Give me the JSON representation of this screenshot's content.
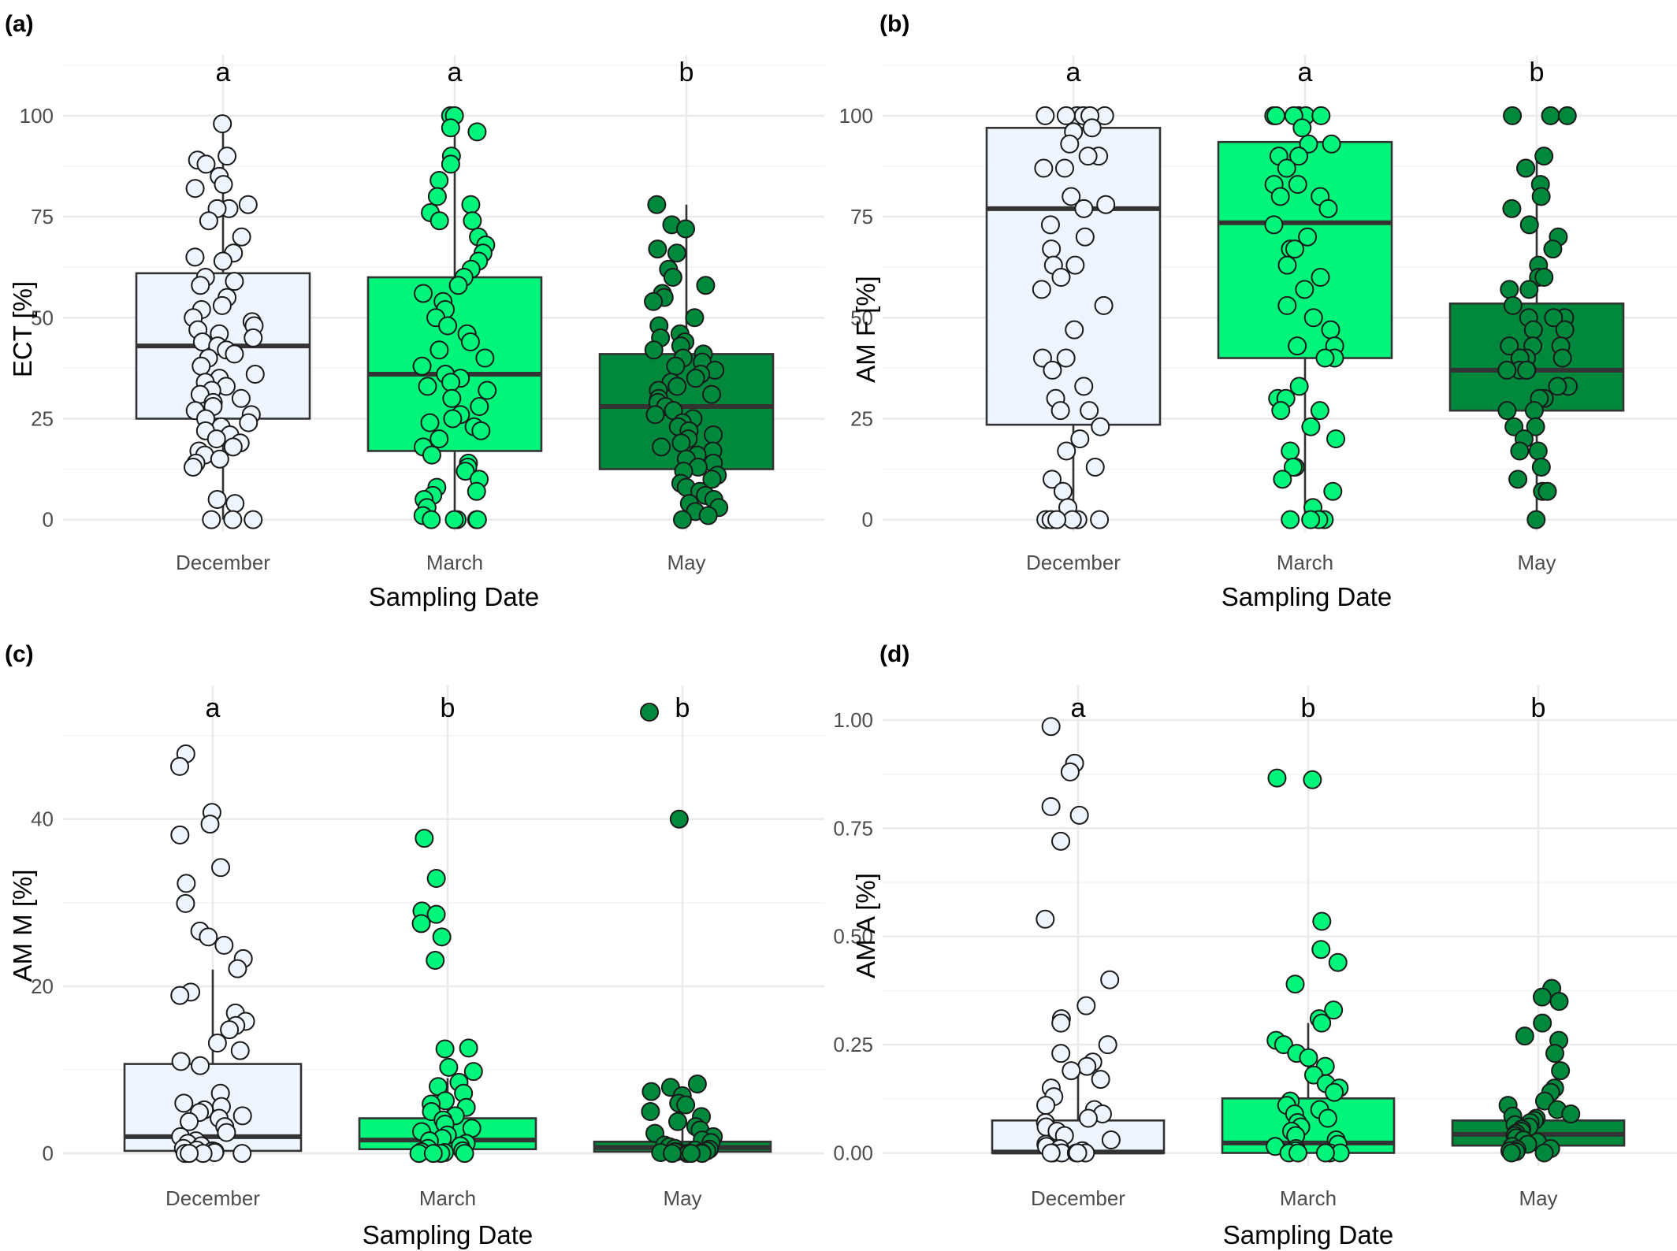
{
  "chart_data": [
    {
      "type": "box",
      "panel": "(a)",
      "ylabel": "ECT [%]",
      "xlabel": "Sampling Date",
      "categories": [
        "December",
        "March",
        "May"
      ],
      "letters": [
        "a",
        "a",
        "b"
      ],
      "ylim": [
        -3,
        115
      ],
      "yticks": [
        0,
        25,
        50,
        75,
        100
      ],
      "box_colors": [
        "#eef5fe",
        "#00f67a",
        "#00883d"
      ],
      "boxes": [
        {
          "q1": 25,
          "median": 43,
          "q3": 61,
          "whisker_low": 0,
          "whisker_high": 98
        },
        {
          "q1": 17,
          "median": 36,
          "q3": 60,
          "whisker_low": 0,
          "whisker_high": 100
        },
        {
          "q1": 12.5,
          "median": 28,
          "q3": 41,
          "whisker_low": 0,
          "whisker_high": 78
        }
      ],
      "points": [
        [
          98,
          90,
          89,
          88,
          85,
          83,
          82,
          78,
          77,
          77,
          74,
          70,
          66,
          65,
          64,
          60,
          59,
          58,
          55,
          53,
          52,
          50,
          49,
          48,
          47,
          46,
          45,
          44,
          43,
          42,
          41,
          40,
          38,
          36,
          35,
          34,
          33,
          32,
          31,
          30,
          29,
          28,
          27,
          26,
          25,
          24,
          23,
          22,
          21,
          20,
          19,
          18,
          17,
          16,
          15,
          14,
          13,
          5,
          4,
          0,
          0,
          0
        ],
        [
          100,
          100,
          97,
          96,
          90,
          88,
          84,
          80,
          78,
          76,
          74,
          74,
          70,
          68,
          66,
          64,
          62,
          60,
          58,
          56,
          54,
          52,
          50,
          48,
          46,
          44,
          42,
          40,
          38,
          36,
          35,
          34,
          33,
          32,
          30,
          28,
          26,
          25,
          24,
          23,
          22,
          20,
          18,
          16,
          14,
          13,
          12,
          10,
          8,
          7,
          6,
          5,
          3,
          1,
          0,
          0,
          0,
          0,
          0
        ],
        [
          78,
          73,
          72,
          67,
          66,
          62,
          60,
          58,
          56,
          55,
          54,
          50,
          48,
          46,
          45,
          44,
          43,
          42,
          41,
          40,
          39,
          38,
          37,
          36,
          35,
          34,
          33,
          32,
          31,
          30,
          29,
          28,
          27,
          26,
          25,
          24,
          23,
          22,
          21,
          20,
          19,
          18,
          17,
          16,
          15,
          14,
          13,
          12,
          11,
          10,
          9,
          8,
          7,
          6,
          5,
          4,
          3,
          2,
          1,
          0
        ]
      ]
    },
    {
      "type": "box",
      "panel": "(b)",
      "ylabel": "AM F [%]",
      "xlabel": "Sampling Date",
      "categories": [
        "December",
        "March",
        "May"
      ],
      "letters": [
        "a",
        "a",
        "b"
      ],
      "ylim": [
        -3,
        115
      ],
      "yticks": [
        0,
        25,
        50,
        75,
        100
      ],
      "box_colors": [
        "#eef5fe",
        "#00f67a",
        "#00883d"
      ],
      "boxes": [
        {
          "q1": 23.5,
          "median": 77,
          "q3": 97,
          "whisker_low": 0,
          "whisker_high": 100
        },
        {
          "q1": 40,
          "median": 73.5,
          "q3": 93.5,
          "whisker_low": 0,
          "whisker_high": 100
        },
        {
          "q1": 27,
          "median": 37,
          "q3": 53.5,
          "whisker_low": 0,
          "whisker_high": 90
        }
      ],
      "points": [
        [
          100,
          100,
          100,
          100,
          100,
          100,
          97,
          96,
          93,
          90,
          90,
          87,
          87,
          80,
          78,
          77,
          73,
          70,
          67,
          63,
          63,
          60,
          57,
          53,
          47,
          40,
          40,
          37,
          33,
          30,
          27,
          27,
          23,
          20,
          17,
          13,
          10,
          7,
          3,
          0,
          0,
          0,
          0,
          0,
          0
        ],
        [
          100,
          100,
          100,
          100,
          100,
          100,
          97,
          93,
          93,
          90,
          90,
          87,
          83,
          83,
          80,
          80,
          77,
          73,
          70,
          67,
          67,
          63,
          60,
          57,
          53,
          50,
          47,
          43,
          43,
          40,
          40,
          33,
          30,
          30,
          27,
          27,
          23,
          20,
          17,
          13,
          13,
          10,
          7,
          3,
          0,
          0,
          0,
          0
        ],
        [
          100,
          100,
          100,
          90,
          87,
          87,
          83,
          80,
          77,
          73,
          70,
          67,
          63,
          60,
          60,
          57,
          57,
          53,
          50,
          50,
          50,
          47,
          47,
          43,
          43,
          43,
          40,
          40,
          40,
          37,
          37,
          37,
          37,
          33,
          33,
          30,
          30,
          27,
          27,
          23,
          23,
          20,
          17,
          17,
          13,
          10,
          7,
          7,
          0
        ]
      ]
    },
    {
      "type": "box",
      "panel": "(c)",
      "ylabel": "AM M [%]",
      "xlabel": "Sampling Date",
      "categories": [
        "December",
        "March",
        "May"
      ],
      "letters": [
        "a",
        "b",
        "b"
      ],
      "ylim": [
        -1.5,
        56
      ],
      "yticks": [
        0,
        20,
        40
      ],
      "box_colors": [
        "#eef5fe",
        "#00f67a",
        "#00883d"
      ],
      "boxes": [
        {
          "q1": 0.3,
          "median": 2,
          "q3": 10.7,
          "whisker_low": 0,
          "whisker_high": 22
        },
        {
          "q1": 0.5,
          "median": 1.6,
          "q3": 4.2,
          "whisker_low": 0,
          "whisker_high": 9
        },
        {
          "q1": 0.2,
          "median": 0.7,
          "q3": 1.4,
          "whisker_low": 0,
          "whisker_high": 3
        }
      ],
      "points": [
        [
          47.8,
          46.3,
          40.8,
          39.4,
          38.1,
          34.2,
          32.3,
          29.9,
          26.6,
          25.9,
          24.9,
          23.3,
          22.1,
          19.3,
          18.9,
          16.8,
          15.8,
          15.3,
          14.8,
          13.2,
          12.3,
          11.0,
          10.5,
          7.2,
          6.0,
          5.6,
          5.2,
          4.9,
          4.5,
          4.2,
          3.8,
          3.2,
          2.5,
          2.0,
          1.5,
          1.2,
          0.9,
          0.6,
          0.4,
          0.3,
          0.2,
          0.1,
          0.0,
          0.0,
          0.0,
          0.0,
          0.0
        ],
        [
          37.7,
          32.9,
          29.0,
          28.6,
          27.5,
          25.9,
          23.1,
          12.6,
          12.5,
          10.3,
          9.8,
          8.5,
          8.0,
          7.2,
          6.3,
          5.9,
          5.5,
          5.0,
          4.5,
          4.0,
          3.5,
          3.0,
          2.6,
          2.2,
          1.8,
          1.5,
          1.2,
          0.9,
          0.6,
          0.3,
          0.2,
          0.1,
          0.0,
          0.0,
          0.0,
          0.0
        ],
        [
          52.8,
          40.0,
          8.3,
          7.9,
          7.4,
          6.9,
          6.0,
          5.8,
          5.0,
          4.4,
          3.8,
          3.2,
          2.8,
          2.4,
          2.0,
          1.6,
          1.3,
          1.0,
          0.8,
          0.6,
          0.5,
          0.4,
          0.3,
          0.2,
          0.2,
          0.1,
          0.1,
          0.0,
          0.0,
          0.0,
          0.0,
          0.0
        ]
      ]
    },
    {
      "type": "box",
      "panel": "(d)",
      "ylabel": "AM A [%]",
      "xlabel": "Sampling Date",
      "categories": [
        "December",
        "March",
        "May"
      ],
      "letters": [
        "a",
        "b",
        "b"
      ],
      "ylim": [
        -0.03,
        1.08
      ],
      "yticks": [
        0.0,
        0.25,
        0.5,
        0.75,
        1.0
      ],
      "box_colors": [
        "#eef5fe",
        "#00f67a",
        "#00883d"
      ],
      "boxes": [
        {
          "q1": 0,
          "median": 0.002,
          "q3": 0.075,
          "whisker_low": 0,
          "whisker_high": 0.19
        },
        {
          "q1": 0,
          "median": 0.023,
          "q3": 0.126,
          "whisker_low": 0,
          "whisker_high": 0.3
        },
        {
          "q1": 0.017,
          "median": 0.043,
          "q3": 0.075,
          "whisker_low": 0,
          "whisker_high": 0.13
        }
      ],
      "points": [
        [
          0.985,
          0.9,
          0.88,
          0.8,
          0.78,
          0.72,
          0.54,
          0.4,
          0.34,
          0.31,
          0.3,
          0.25,
          0.23,
          0.21,
          0.2,
          0.19,
          0.17,
          0.15,
          0.13,
          0.11,
          0.1,
          0.09,
          0.08,
          0.07,
          0.06,
          0.05,
          0.04,
          0.03,
          0.02,
          0.015,
          0.01,
          0.005,
          0.0,
          0.0,
          0.0,
          0.0,
          0.0,
          0.0
        ],
        [
          0.866,
          0.862,
          0.535,
          0.47,
          0.44,
          0.39,
          0.33,
          0.31,
          0.3,
          0.26,
          0.25,
          0.23,
          0.22,
          0.2,
          0.18,
          0.16,
          0.15,
          0.14,
          0.12,
          0.11,
          0.1,
          0.09,
          0.08,
          0.07,
          0.06,
          0.05,
          0.04,
          0.03,
          0.02,
          0.015,
          0.01,
          0.005,
          0.0,
          0.0,
          0.0,
          0.0,
          0.0
        ],
        [
          0.38,
          0.36,
          0.35,
          0.3,
          0.27,
          0.26,
          0.23,
          0.19,
          0.15,
          0.14,
          0.12,
          0.11,
          0.1,
          0.09,
          0.085,
          0.08,
          0.075,
          0.07,
          0.065,
          0.06,
          0.055,
          0.05,
          0.045,
          0.04,
          0.035,
          0.03,
          0.025,
          0.02,
          0.015,
          0.01,
          0.008,
          0.005,
          0.003,
          0.0,
          0.0
        ]
      ]
    }
  ]
}
